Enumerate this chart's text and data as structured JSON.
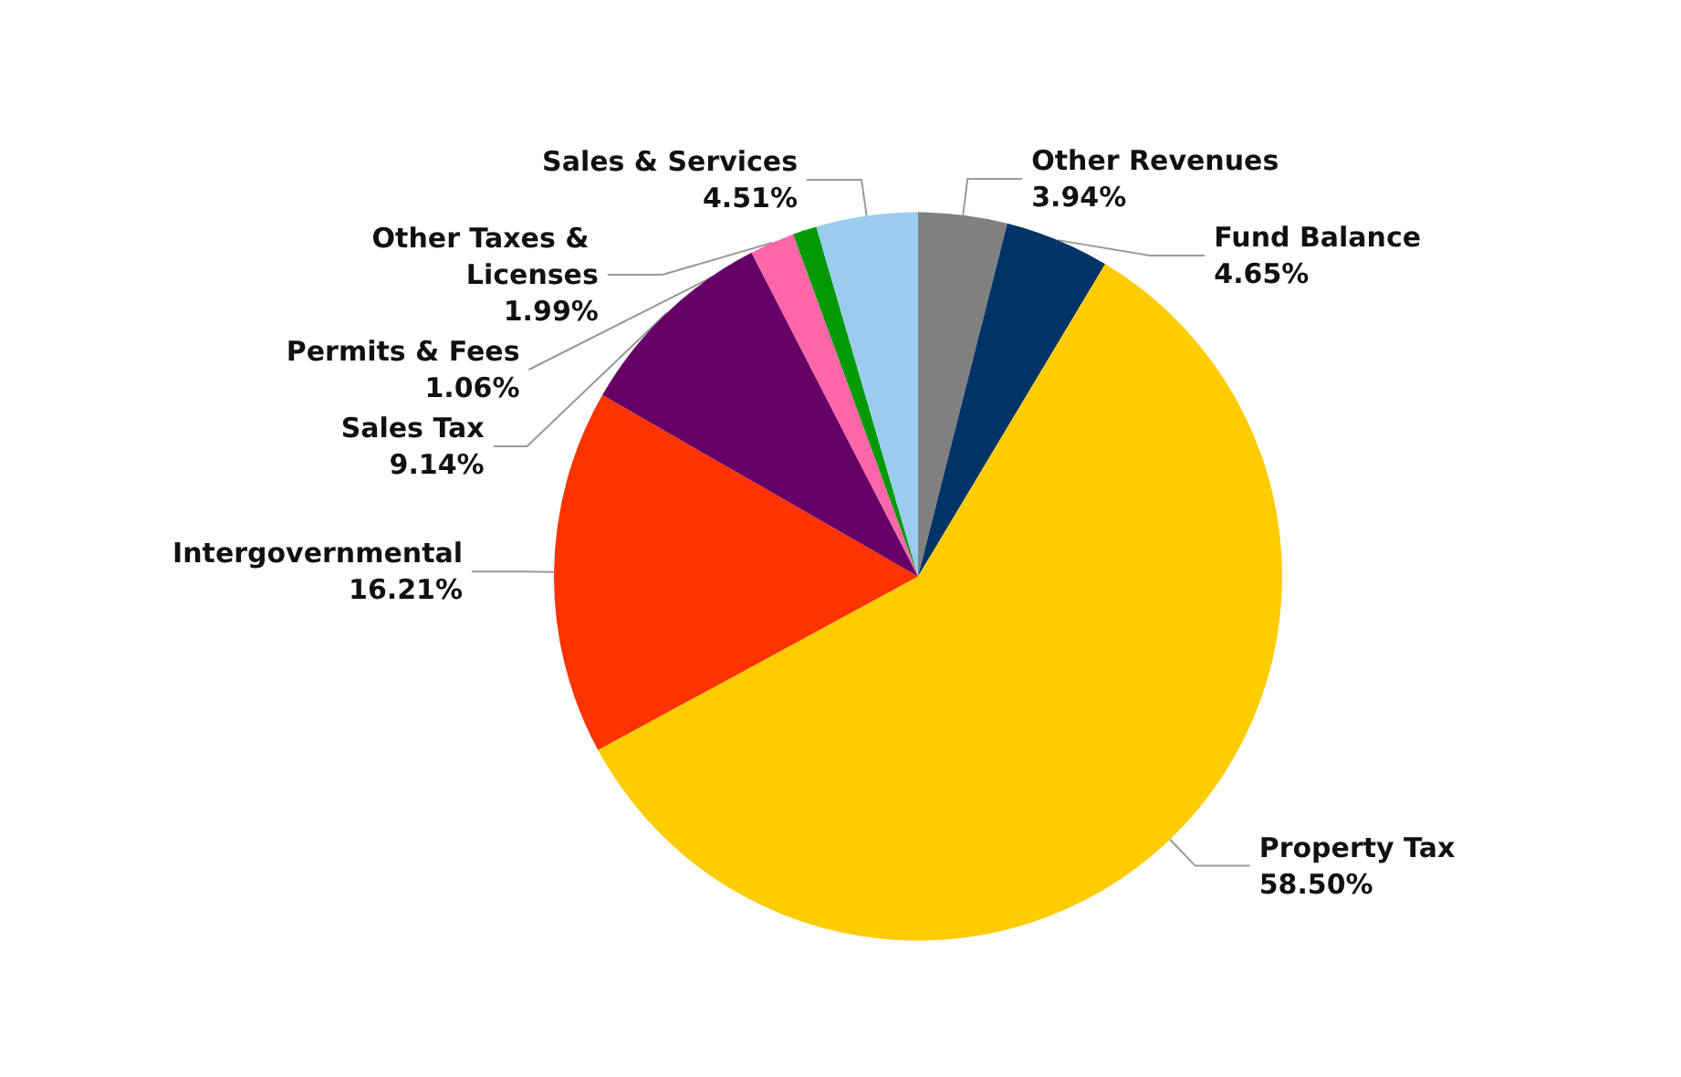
{
  "chart_data": {
    "type": "pie",
    "categories": [
      "Other Revenues",
      "Fund Balance",
      "Property Tax",
      "Intergovernmental",
      "Sales Tax",
      "Other Taxes & Licenses",
      "Permits & Fees",
      "Sales & Services"
    ],
    "values": [
      3.94,
      4.65,
      58.5,
      16.21,
      9.14,
      1.99,
      1.06,
      4.51
    ],
    "value_labels": [
      "3.94%",
      "4.65%",
      "58.50%",
      "16.21%",
      "9.14%",
      "1.99%",
      "1.06%",
      "4.51%"
    ],
    "colors": [
      "#808080",
      "#003366",
      "#ffcc00",
      "#ff3300",
      "#660066",
      "#ff66aa",
      "#009900",
      "#99ccee"
    ],
    "legend": false
  }
}
